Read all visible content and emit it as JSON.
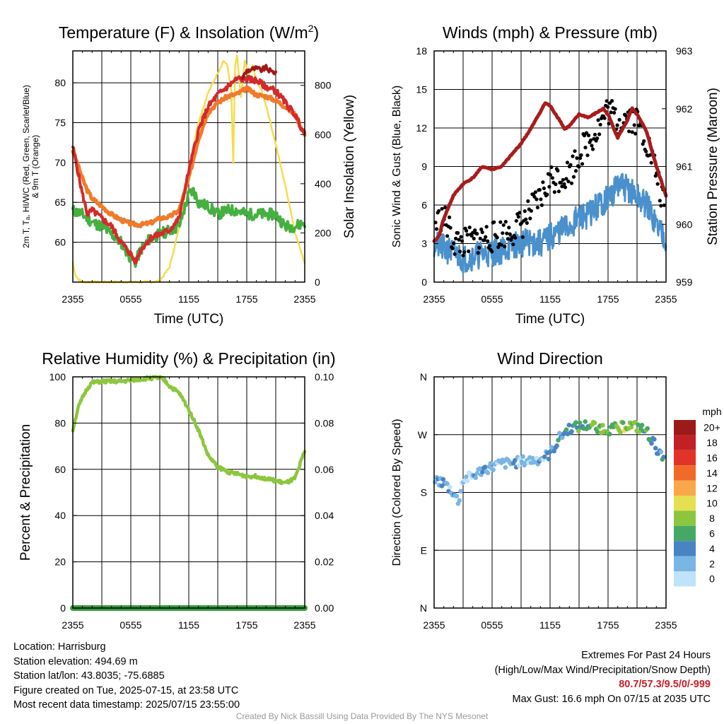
{
  "chart_data": [
    {
      "id": "temp",
      "type": "line",
      "title": "Temperature (F) & Insolation (W/m²)",
      "xlabel": "Time (UTC)",
      "ylabel_lines": [
        "2m T, Tₐ, HI/WC (Red, Green, Scarlet/Blue)",
        "& 9m T (Orange)"
      ],
      "ylabel_right": "Solar Insolation (Yellow)",
      "x_ticks": [
        "2355",
        "0555",
        "1155",
        "1755",
        "2355"
      ],
      "ylim": [
        55,
        84
      ],
      "y_ticks": [
        60,
        65,
        70,
        75,
        80
      ],
      "ylim_right": [
        0,
        940
      ],
      "y_ticks_right": [
        0,
        200,
        400,
        600,
        800
      ],
      "colors": {
        "temp_2m": "#d42a2a",
        "dewpoint": "#44b040",
        "heat_index": "#a01818",
        "temp_9m": "#f07a2a",
        "solar": "#f6dc4c"
      },
      "series": [
        {
          "key": "temp_2m",
          "hours": [
            0,
            1,
            1.5,
            2,
            3,
            4,
            5,
            6,
            6.5,
            7,
            8,
            9,
            10,
            11,
            12,
            13,
            14,
            15,
            16,
            17,
            18,
            19,
            20,
            21,
            22,
            23,
            24
          ],
          "values": [
            72,
            66,
            63.5,
            64,
            63,
            62,
            60,
            58.5,
            57.5,
            59,
            60.5,
            61,
            61.5,
            63,
            69,
            74,
            77,
            78.5,
            79.5,
            80.5,
            80.5,
            80.3,
            79.5,
            79,
            77.5,
            76,
            73.5
          ]
        },
        {
          "key": "temp_9m",
          "hours": [
            0,
            1,
            1.5,
            2,
            3,
            4,
            5,
            6,
            7,
            8,
            9,
            10,
            11,
            12,
            13,
            14,
            15,
            16,
            17,
            18,
            19,
            20,
            21,
            22,
            23,
            24
          ],
          "values": [
            71.5,
            68,
            66.5,
            65.5,
            64.5,
            63.5,
            62.8,
            62.3,
            62.2,
            62.4,
            63,
            63.2,
            64,
            68,
            73,
            76.3,
            77.5,
            78.3,
            78.6,
            79.3,
            78.5,
            78.3,
            77.8,
            77,
            76,
            73.5
          ]
        },
        {
          "key": "heat_index",
          "hours": [
            17.5,
            18,
            18.5,
            19,
            19.5,
            20,
            20.5,
            21
          ],
          "values": [
            80.5,
            81.5,
            81.7,
            81.8,
            81.6,
            81.9,
            81.4,
            81.3
          ]
        },
        {
          "key": "dewpoint",
          "hours": [
            0,
            1,
            2,
            3,
            4,
            5,
            6,
            6.5,
            7,
            8,
            9,
            10,
            11,
            12,
            12.5,
            13,
            14,
            15,
            16,
            17,
            18,
            19,
            20,
            21,
            22,
            23,
            24
          ],
          "values": [
            64,
            63.5,
            62.5,
            62,
            61,
            60,
            58,
            57.5,
            59,
            60.5,
            61,
            61.5,
            62,
            66,
            66.5,
            65,
            64.5,
            63.5,
            64,
            64,
            63.5,
            63.5,
            63.5,
            63.5,
            62,
            62,
            62.5
          ]
        },
        {
          "key": "solar",
          "axis": "right",
          "hours": [
            0,
            0.25,
            0.6,
            1,
            2,
            6,
            8,
            9,
            10,
            11,
            12,
            13,
            14,
            15,
            15.6,
            16,
            16.4,
            16.6,
            16.8,
            17,
            17.4,
            17.8,
            18.2,
            18.6,
            19,
            19.5,
            20,
            21,
            22,
            22.5,
            23,
            24
          ],
          "values": [
            80,
            30,
            10,
            0,
            0,
            0,
            0,
            5,
            60,
            220,
            460,
            650,
            770,
            850,
            900,
            880,
            780,
            480,
            880,
            920,
            750,
            900,
            840,
            880,
            820,
            780,
            720,
            560,
            390,
            300,
            200,
            80
          ]
        }
      ]
    },
    {
      "id": "wind",
      "type": "line",
      "title": "Winds (mph) & Pressure (mb)",
      "xlabel": "Time (UTC)",
      "ylabel": "Sonic Wind & Gust (Blue, Black)",
      "ylabel_right": "Station Pressure (Maroon)",
      "x_ticks": [
        "2355",
        "0555",
        "1155",
        "1755",
        "2355"
      ],
      "ylim": [
        0,
        18
      ],
      "y_ticks": [
        0,
        3,
        6,
        9,
        12,
        15,
        18
      ],
      "ylim_right": [
        959,
        963
      ],
      "y_ticks_right": [
        959,
        960,
        961,
        962,
        963
      ],
      "colors": {
        "wind": "#4a90cc",
        "gust": "#000000",
        "pressure": "#a81c1c"
      },
      "series": [
        {
          "key": "wind",
          "hours": [
            0,
            1,
            2,
            3,
            4,
            5,
            6,
            7,
            8,
            9,
            10,
            11,
            12,
            13,
            14,
            15,
            16,
            17,
            18,
            19,
            20,
            21,
            22,
            23,
            24
          ],
          "values": [
            3,
            2.6,
            2.3,
            1.8,
            2,
            2.2,
            2.3,
            2.5,
            2.8,
            3,
            3.1,
            3,
            3.5,
            4,
            4.3,
            5,
            5.3,
            6,
            6.5,
            7.5,
            7.3,
            6.6,
            6,
            4.5,
            3.5
          ]
        },
        {
          "key": "gust",
          "hours": [
            0,
            1,
            2,
            3,
            4,
            5,
            6,
            7,
            8,
            9,
            10,
            11,
            12,
            13,
            14,
            15,
            16,
            17,
            18,
            19,
            20,
            21,
            22,
            23,
            24
          ],
          "values": [
            4.5,
            5,
            3.2,
            3,
            3.2,
            3.5,
            3.5,
            3.8,
            4,
            4.5,
            5.5,
            6.5,
            8,
            8.2,
            8.5,
            10,
            11,
            12,
            13.5,
            12.5,
            13,
            12.5,
            11,
            8.5,
            5
          ]
        },
        {
          "key": "pressure",
          "axis": "right",
          "hours": [
            0,
            0.5,
            1,
            2,
            3,
            4,
            5,
            6,
            7,
            8,
            9,
            10,
            11,
            11.5,
            12,
            13,
            13.5,
            14,
            15,
            16,
            17,
            17.5,
            18,
            18.5,
            19,
            20,
            20.5,
            21,
            22,
            23,
            24
          ],
          "values": [
            959.7,
            959.8,
            960.1,
            960.5,
            960.7,
            960.8,
            961,
            960.95,
            961,
            961.2,
            961.4,
            961.65,
            961.95,
            962.1,
            962.05,
            961.8,
            961.65,
            961.7,
            961.9,
            961.85,
            961.95,
            962,
            961.9,
            961.7,
            961.5,
            961.8,
            962,
            961.9,
            961.6,
            961,
            960.5
          ]
        }
      ]
    },
    {
      "id": "rh",
      "type": "line",
      "title": "Relative Humidity (%) & Precipitation (in)",
      "ylabel": "Percent & Precipitation",
      "x_ticks": [
        "2355",
        "0555",
        "1155",
        "1755",
        "2355"
      ],
      "ylim": [
        0,
        100
      ],
      "y_ticks": [
        0,
        20,
        40,
        60,
        80,
        100
      ],
      "ylim_right": [
        0,
        0.1
      ],
      "y_ticks_right": [
        "0.00",
        "0.02",
        "0.04",
        "0.06",
        "0.08",
        "0.10"
      ],
      "colors": {
        "rh": "#8cc63e",
        "precip": "#3a9a40"
      },
      "series": [
        {
          "key": "rh",
          "hours": [
            0,
            0.5,
            1,
            1.5,
            2,
            3,
            4,
            5,
            6,
            7,
            8,
            9,
            9.5,
            10,
            11,
            12,
            13,
            14,
            15,
            16,
            17,
            18,
            19,
            20,
            21,
            22,
            23,
            24
          ],
          "values": [
            77,
            86,
            91,
            95,
            97.5,
            98,
            98,
            98,
            98.5,
            99,
            99.5,
            99.5,
            98.5,
            96,
            93,
            86,
            77,
            66,
            61,
            59,
            58,
            57,
            57,
            56,
            55,
            54,
            56,
            68
          ]
        },
        {
          "key": "precip",
          "hours": [
            0,
            24
          ],
          "values": [
            0,
            0
          ]
        }
      ]
    },
    {
      "id": "direction",
      "type": "scatter",
      "title": "Wind Direction",
      "ylabel": "Direction (Colored By Speed)",
      "x_ticks": [
        "2355",
        "0555",
        "1155",
        "1755",
        "2355"
      ],
      "y_ticks": [
        "N",
        "E",
        "S",
        "W",
        "N"
      ],
      "ylim": [
        0,
        360
      ],
      "colorbar": {
        "title": "mph",
        "labels": [
          "20+",
          "18",
          "16",
          "14",
          "12",
          "10",
          "8",
          "6",
          "4",
          "2",
          "0"
        ],
        "colors": [
          "#9b1a1a",
          "#c02026",
          "#e2332a",
          "#f06a2a",
          "#f8a84a",
          "#e6df52",
          "#8cc63e",
          "#47a866",
          "#4884c2",
          "#7ab6e4",
          "#bfe3f8"
        ]
      },
      "series": [
        {
          "name": "direction",
          "hours": [
            0,
            1,
            2,
            2.5,
            3,
            4,
            5,
            6,
            7,
            8,
            9,
            10,
            11,
            12,
            13,
            14,
            15,
            16,
            17,
            18,
            19,
            20,
            21,
            22,
            23,
            24
          ],
          "values": [
            200,
            195,
            180,
            165,
            200,
            205,
            215,
            220,
            225,
            225,
            228,
            230,
            232,
            240,
            265,
            280,
            282,
            285,
            282,
            278,
            280,
            285,
            282,
            275,
            250,
            220
          ],
          "speeds": [
            3,
            3,
            2,
            4,
            1,
            2,
            2,
            2,
            2,
            2,
            2,
            2,
            2,
            3,
            4,
            4,
            6,
            5,
            7,
            7,
            7,
            8,
            7,
            6,
            4,
            4
          ]
        }
      ]
    }
  ],
  "info": {
    "location": "Location: Harrisburg",
    "elevation": "Station elevation: 494.69 m",
    "latlon": "Station lat/lon: 43.8035; -75.6885",
    "created": "Figure created on Tue, 2025-07-15, at 23:58 UTC",
    "recent": "Most recent data timestamp: 2025/07/15 23:55:00"
  },
  "extremes": {
    "title": "Extremes For Past 24 Hours",
    "subtitle": "(High/Low/Max Wind/Precipitation/Snow Depth)",
    "values": "80.7/57.3/9.5/0/-999",
    "max_gust": "Max Gust: 16.6 mph On 07/15 at 2035 UTC"
  },
  "credit": "Created By Nick Bassill Using Data Provided By The NYS Mesonet"
}
